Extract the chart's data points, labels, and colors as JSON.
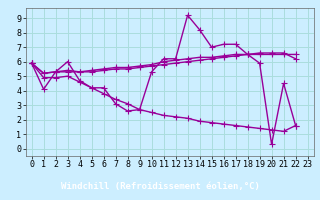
{
  "background_color": "#cceeff",
  "plot_bg_color": "#cceeff",
  "grid_color": "#aadddd",
  "line_color": "#990099",
  "marker": "+",
  "markersize": 4,
  "linewidth": 1.0,
  "xlabel": "Windchill (Refroidissement éolien,°C)",
  "xlabel_fontsize": 6.5,
  "tick_fontsize": 6,
  "xlim": [
    -0.5,
    23.5
  ],
  "ylim": [
    -0.5,
    9.7
  ],
  "xticks": [
    0,
    1,
    2,
    3,
    4,
    5,
    6,
    7,
    8,
    9,
    10,
    11,
    12,
    13,
    14,
    15,
    16,
    17,
    18,
    19,
    20,
    21,
    22,
    23
  ],
  "yticks": [
    0,
    1,
    2,
    3,
    4,
    5,
    6,
    7,
    8,
    9
  ],
  "xlabel_bg": "#6633aa",
  "series": [
    [
      5.9,
      4.1,
      5.3,
      6.0,
      4.7,
      4.2,
      4.2,
      3.1,
      2.6,
      2.7,
      5.3,
      6.2,
      6.2,
      9.2,
      8.2,
      7.0,
      7.2,
      7.2,
      6.5,
      5.9,
      0.3,
      4.5,
      1.6
    ],
    [
      5.9,
      5.2,
      5.3,
      5.3,
      5.3,
      5.3,
      5.4,
      5.5,
      5.5,
      5.6,
      5.7,
      5.8,
      5.9,
      6.0,
      6.1,
      6.2,
      6.3,
      6.4,
      6.5,
      6.5,
      6.5,
      6.5,
      6.5
    ],
    [
      5.9,
      5.2,
      5.3,
      5.4,
      5.3,
      5.4,
      5.5,
      5.6,
      5.6,
      5.7,
      5.8,
      6.0,
      6.1,
      6.2,
      6.3,
      6.3,
      6.4,
      6.5,
      6.5,
      6.6,
      6.6,
      6.6,
      6.2
    ],
    [
      5.9,
      4.9,
      4.9,
      5.0,
      4.6,
      4.2,
      3.8,
      3.4,
      3.1,
      2.7,
      2.5,
      2.3,
      2.2,
      2.1,
      1.9,
      1.8,
      1.7,
      1.6,
      1.5,
      1.4,
      1.3,
      1.2,
      1.6
    ]
  ],
  "x_values": [
    0,
    1,
    2,
    3,
    4,
    5,
    6,
    7,
    8,
    9,
    10,
    11,
    12,
    13,
    14,
    15,
    16,
    17,
    18,
    19,
    20,
    21,
    22
  ]
}
